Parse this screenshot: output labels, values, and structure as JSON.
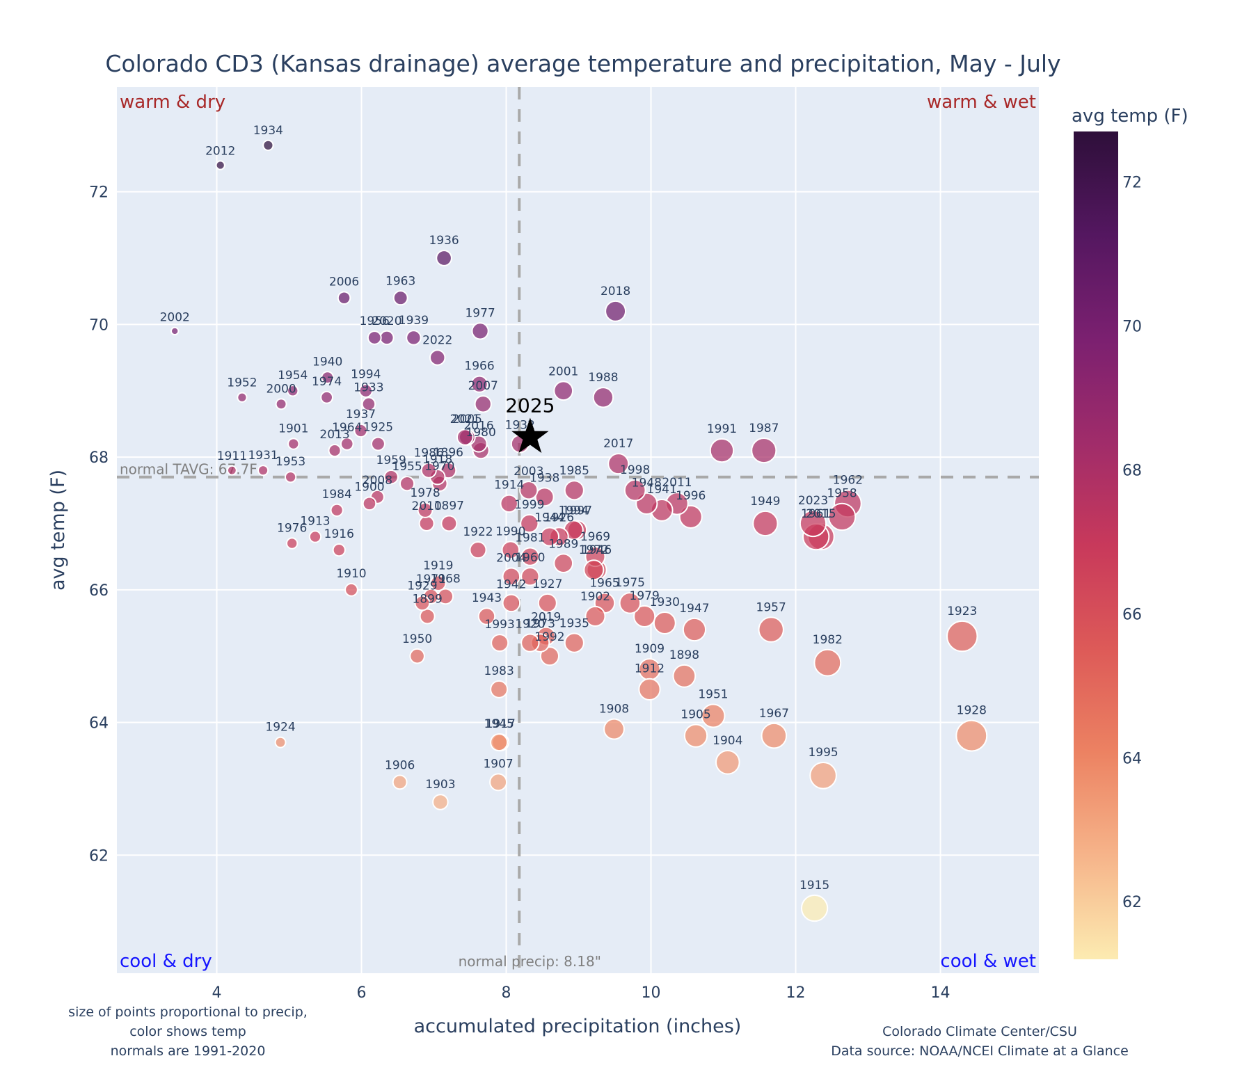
{
  "chart_data": {
    "type": "scatter",
    "title": "Colorado CD3 (Kansas drainage) average temperature and precipitation, May - July",
    "xlabel": "accumulated precipitation (inches)",
    "ylabel": "avg temp (F)",
    "xlim": [
      2.62,
      15.36
    ],
    "ylim": [
      60.22,
      73.58
    ],
    "xticks": [
      4,
      6,
      8,
      10,
      12,
      14
    ],
    "yticks": [
      62,
      64,
      66,
      68,
      70,
      72
    ],
    "grid": true,
    "colorbar": {
      "title": "avg temp (F)",
      "range": [
        61.2,
        72.7
      ],
      "ticks": [
        62,
        64,
        66,
        68,
        70,
        72
      ],
      "colorscale": [
        "#fcebb1",
        "#f6b48a",
        "#ec8262",
        "#dd5a58",
        "#c8395b",
        "#a02c6a",
        "#7b2070",
        "#541760",
        "#2e0f3a"
      ]
    },
    "reference_lines": {
      "normal_temp": 67.7,
      "normal_temp_label": "normal TAVG: 67.7F",
      "normal_precip": 8.18,
      "normal_precip_label": "normal precip: 8.18\""
    },
    "quadrant_labels": {
      "top_left": "warm & dry",
      "top_right": "warm & wet",
      "bottom_left": "cool & dry",
      "bottom_right": "cool & wet"
    },
    "quadrant_colors": {
      "warm": "#a82828",
      "cool": "#1414ff"
    },
    "highlight": {
      "year": "2025",
      "precip": 8.33,
      "temp": 68.3,
      "marker": "star"
    },
    "points": [
      {
        "year": "1934",
        "precip": 4.71,
        "temp": 72.7
      },
      {
        "year": "2012",
        "precip": 4.05,
        "temp": 72.4
      },
      {
        "year": "1936",
        "precip": 7.14,
        "temp": 71.0
      },
      {
        "year": "2006",
        "precip": 5.76,
        "temp": 70.4
      },
      {
        "year": "1963",
        "precip": 6.54,
        "temp": 70.4
      },
      {
        "year": "2018",
        "precip": 9.51,
        "temp": 70.2
      },
      {
        "year": "2002",
        "precip": 3.42,
        "temp": 69.9
      },
      {
        "year": "1977",
        "precip": 7.64,
        "temp": 69.9
      },
      {
        "year": "1956",
        "precip": 6.18,
        "temp": 69.8
      },
      {
        "year": "2020",
        "precip": 6.35,
        "temp": 69.8
      },
      {
        "year": "1939",
        "precip": 6.72,
        "temp": 69.8
      },
      {
        "year": "2022",
        "precip": 7.05,
        "temp": 69.5
      },
      {
        "year": "1940",
        "precip": 5.53,
        "temp": 69.2
      },
      {
        "year": "1966",
        "precip": 7.63,
        "temp": 69.1
      },
      {
        "year": "2001",
        "precip": 8.79,
        "temp": 69.0
      },
      {
        "year": "1954",
        "precip": 5.05,
        "temp": 69.0
      },
      {
        "year": "1994",
        "precip": 6.06,
        "temp": 69.0
      },
      {
        "year": "1952",
        "precip": 4.35,
        "temp": 68.9
      },
      {
        "year": "1974",
        "precip": 5.52,
        "temp": 68.9
      },
      {
        "year": "1988",
        "precip": 9.34,
        "temp": 68.9
      },
      {
        "year": "2000",
        "precip": 4.89,
        "temp": 68.8
      },
      {
        "year": "1933",
        "precip": 6.1,
        "temp": 68.8
      },
      {
        "year": "2007",
        "precip": 7.68,
        "temp": 68.8
      },
      {
        "year": "1937",
        "precip": 5.99,
        "temp": 68.4
      },
      {
        "year": "2021",
        "precip": 7.43,
        "temp": 68.3
      },
      {
        "year": "2005",
        "precip": 7.46,
        "temp": 68.3
      },
      {
        "year": "1901",
        "precip": 5.06,
        "temp": 68.2
      },
      {
        "year": "1964",
        "precip": 5.8,
        "temp": 68.2
      },
      {
        "year": "1925",
        "precip": 6.23,
        "temp": 68.2
      },
      {
        "year": "1932",
        "precip": 8.19,
        "temp": 68.2
      },
      {
        "year": "2016",
        "precip": 7.62,
        "temp": 68.2
      },
      {
        "year": "1980",
        "precip": 7.65,
        "temp": 68.1
      },
      {
        "year": "2013",
        "precip": 5.63,
        "temp": 68.1
      },
      {
        "year": "1991",
        "precip": 10.98,
        "temp": 68.1
      },
      {
        "year": "1987",
        "precip": 11.56,
        "temp": 68.1
      },
      {
        "year": "2017",
        "precip": 9.55,
        "temp": 67.9
      },
      {
        "year": "1911",
        "precip": 4.21,
        "temp": 67.8
      },
      {
        "year": "1931",
        "precip": 4.64,
        "temp": 67.8
      },
      {
        "year": "1986",
        "precip": 6.93,
        "temp": 67.8
      },
      {
        "year": "1896",
        "precip": 7.2,
        "temp": 67.8
      },
      {
        "year": "1918",
        "precip": 7.05,
        "temp": 67.7
      },
      {
        "year": "1959",
        "precip": 6.41,
        "temp": 67.7
      },
      {
        "year": "1953",
        "precip": 5.02,
        "temp": 67.7
      },
      {
        "year": "1955",
        "precip": 6.63,
        "temp": 67.6
      },
      {
        "year": "1970",
        "precip": 7.08,
        "temp": 67.6
      },
      {
        "year": "1998",
        "precip": 9.78,
        "temp": 67.5
      },
      {
        "year": "2003",
        "precip": 8.31,
        "temp": 67.5
      },
      {
        "year": "1985",
        "precip": 8.94,
        "temp": 67.5
      },
      {
        "year": "1938",
        "precip": 8.53,
        "temp": 67.4
      },
      {
        "year": "2008",
        "precip": 6.22,
        "temp": 67.4
      },
      {
        "year": "1948",
        "precip": 9.94,
        "temp": 67.3
      },
      {
        "year": "1914",
        "precip": 8.04,
        "temp": 67.3
      },
      {
        "year": "2011",
        "precip": 10.36,
        "temp": 67.3
      },
      {
        "year": "1962",
        "precip": 12.72,
        "temp": 67.3
      },
      {
        "year": "1900",
        "precip": 6.11,
        "temp": 67.3
      },
      {
        "year": "1941",
        "precip": 10.15,
        "temp": 67.2
      },
      {
        "year": "1978",
        "precip": 6.88,
        "temp": 67.2
      },
      {
        "year": "1984",
        "precip": 5.66,
        "temp": 67.2
      },
      {
        "year": "1958",
        "precip": 12.64,
        "temp": 67.1
      },
      {
        "year": "1996",
        "precip": 10.55,
        "temp": 67.1
      },
      {
        "year": "1949",
        "precip": 11.58,
        "temp": 67.0
      },
      {
        "year": "2023",
        "precip": 12.24,
        "temp": 67.0
      },
      {
        "year": "2010",
        "precip": 6.9,
        "temp": 67.0
      },
      {
        "year": "1897",
        "precip": 7.21,
        "temp": 67.0
      },
      {
        "year": "1999",
        "precip": 8.32,
        "temp": 67.0
      },
      {
        "year": "1997",
        "precip": 8.98,
        "temp": 66.9
      },
      {
        "year": "1994b",
        "precip": 8.93,
        "temp": 66.9
      },
      {
        "year": "1944",
        "precip": 8.6,
        "temp": 66.8
      },
      {
        "year": "1926",
        "precip": 8.73,
        "temp": 66.8
      },
      {
        "year": "1961",
        "precip": 12.28,
        "temp": 66.8
      },
      {
        "year": "2015",
        "precip": 12.35,
        "temp": 66.8
      },
      {
        "year": "1913",
        "precip": 5.36,
        "temp": 66.8
      },
      {
        "year": "1976",
        "precip": 5.04,
        "temp": 66.7
      },
      {
        "year": "1922",
        "precip": 7.61,
        "temp": 66.6
      },
      {
        "year": "1990",
        "precip": 8.06,
        "temp": 66.6
      },
      {
        "year": "1916",
        "precip": 5.69,
        "temp": 66.6
      },
      {
        "year": "1981",
        "precip": 8.33,
        "temp": 66.5
      },
      {
        "year": "1969",
        "precip": 9.23,
        "temp": 66.5
      },
      {
        "year": "1989",
        "precip": 8.79,
        "temp": 66.4
      },
      {
        "year": "1972",
        "precip": 9.21,
        "temp": 66.3
      },
      {
        "year": "1946",
        "precip": 9.25,
        "temp": 66.3
      },
      {
        "year": "2004",
        "precip": 8.07,
        "temp": 66.2
      },
      {
        "year": "1960",
        "precip": 8.33,
        "temp": 66.2
      },
      {
        "year": "1919",
        "precip": 7.06,
        "temp": 66.1
      },
      {
        "year": "1910",
        "precip": 5.86,
        "temp": 66.0
      },
      {
        "year": "1971",
        "precip": 6.96,
        "temp": 65.9
      },
      {
        "year": "1968",
        "precip": 7.16,
        "temp": 65.9
      },
      {
        "year": "1942",
        "precip": 8.07,
        "temp": 65.8
      },
      {
        "year": "1927",
        "precip": 8.57,
        "temp": 65.8
      },
      {
        "year": "1965",
        "precip": 9.36,
        "temp": 65.8
      },
      {
        "year": "1975",
        "precip": 9.71,
        "temp": 65.8
      },
      {
        "year": "1929",
        "precip": 6.84,
        "temp": 65.8
      },
      {
        "year": "1899",
        "precip": 6.91,
        "temp": 65.6
      },
      {
        "year": "1943",
        "precip": 7.73,
        "temp": 65.6
      },
      {
        "year": "1902",
        "precip": 9.23,
        "temp": 65.6
      },
      {
        "year": "1979",
        "precip": 9.91,
        "temp": 65.6
      },
      {
        "year": "1930",
        "precip": 10.19,
        "temp": 65.5
      },
      {
        "year": "1947",
        "precip": 10.6,
        "temp": 65.4
      },
      {
        "year": "1957",
        "precip": 11.66,
        "temp": 65.4
      },
      {
        "year": "1923",
        "precip": 14.3,
        "temp": 65.3
      },
      {
        "year": "2019",
        "precip": 8.55,
        "temp": 65.3
      },
      {
        "year": "1935",
        "precip": 8.94,
        "temp": 65.2
      },
      {
        "year": "1993",
        "precip": 7.91,
        "temp": 65.2
      },
      {
        "year": "1920",
        "precip": 8.33,
        "temp": 65.2
      },
      {
        "year": "1973",
        "precip": 8.47,
        "temp": 65.2
      },
      {
        "year": "1992",
        "precip": 8.6,
        "temp": 65.0
      },
      {
        "year": "1950",
        "precip": 6.77,
        "temp": 65.0
      },
      {
        "year": "1982",
        "precip": 12.44,
        "temp": 64.9
      },
      {
        "year": "1909",
        "precip": 9.98,
        "temp": 64.8
      },
      {
        "year": "1898",
        "precip": 10.46,
        "temp": 64.7
      },
      {
        "year": "1983",
        "precip": 7.9,
        "temp": 64.5
      },
      {
        "year": "1912",
        "precip": 9.98,
        "temp": 64.5
      },
      {
        "year": "1951",
        "precip": 10.86,
        "temp": 64.1
      },
      {
        "year": "1908",
        "precip": 9.49,
        "temp": 63.9
      },
      {
        "year": "1905",
        "precip": 10.62,
        "temp": 63.8
      },
      {
        "year": "1967",
        "precip": 11.7,
        "temp": 63.8
      },
      {
        "year": "1928",
        "precip": 14.43,
        "temp": 63.8
      },
      {
        "year": "1945",
        "precip": 7.9,
        "temp": 63.7
      },
      {
        "year": "1917",
        "precip": 7.92,
        "temp": 63.7
      },
      {
        "year": "1924",
        "precip": 4.88,
        "temp": 63.7
      },
      {
        "year": "1904",
        "precip": 11.06,
        "temp": 63.4
      },
      {
        "year": "1995",
        "precip": 12.38,
        "temp": 63.2
      },
      {
        "year": "1906",
        "precip": 6.53,
        "temp": 63.1
      },
      {
        "year": "1907",
        "precip": 7.89,
        "temp": 63.1
      },
      {
        "year": "1903",
        "precip": 7.09,
        "temp": 62.8
      },
      {
        "year": "1915",
        "precip": 12.26,
        "temp": 61.2
      }
    ],
    "notes": {
      "left": [
        "size of points proportional to precip,",
        "color shows temp",
        "normals are 1991-2020"
      ],
      "right": [
        "Colorado Climate Center/CSU",
        "Data source: NOAA/NCEI Climate at a Glance"
      ]
    }
  }
}
